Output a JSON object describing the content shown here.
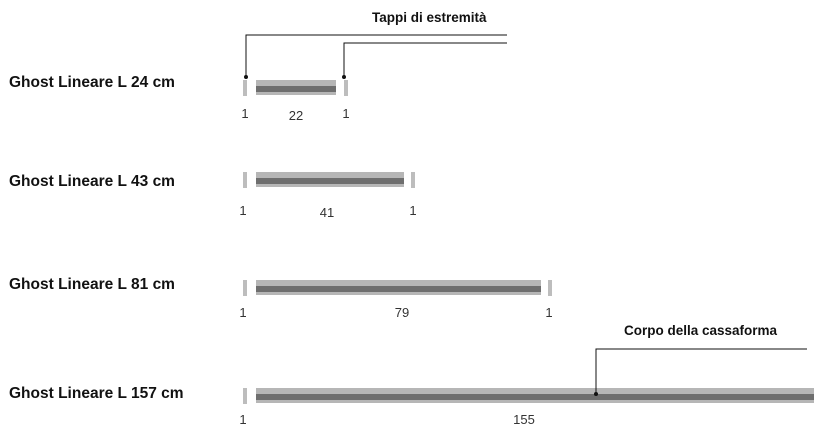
{
  "callouts": {
    "end_caps": "Tappi di estremità",
    "body": "Corpo della cassaforma"
  },
  "rows": [
    {
      "label": "Ghost Lineare L 24 cm",
      "left_cap": "1",
      "body": "22",
      "right_cap": "1"
    },
    {
      "label": "Ghost Lineare L 43 cm",
      "left_cap": "1",
      "body": "41",
      "right_cap": "1"
    },
    {
      "label": "Ghost Lineare L 81 cm",
      "left_cap": "1",
      "body": "79",
      "right_cap": "1"
    },
    {
      "label": "Ghost Lineare L 157 cm",
      "left_cap": "1",
      "body": "155",
      "right_cap": ""
    }
  ],
  "colors": {
    "body_light": "#b6b6b6",
    "body_dark": "#6e6e6e",
    "cap": "#bdbdbd",
    "line": "#111111"
  }
}
